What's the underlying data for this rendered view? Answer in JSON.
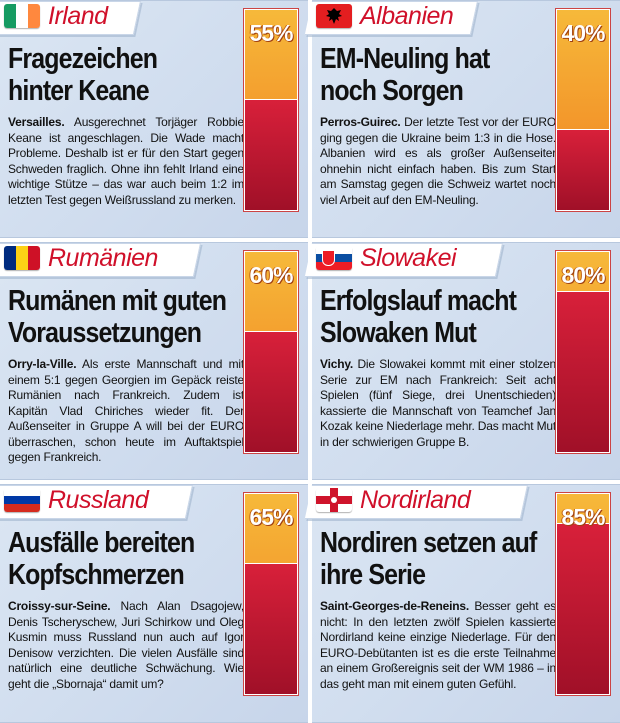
{
  "cards": [
    {
      "country": "Irland",
      "percent_label": "55%",
      "percent": 55,
      "headline": "Fragezeichen hinter Keane",
      "dateline": "Versailles.",
      "text": "Ausgerechnet Torjäger Robbie Keane ist angeschlagen. Die Wade macht Probleme. Deshalb ist er für den Start gegen Schweden fraglich. Ohne ihn fehlt Irland eine wichtige Stütze – das war auch beim 1:2 im letzten Test gegen Weißrussland zu merken.",
      "flag": {
        "type": "vertical",
        "colors": [
          "#169b62",
          "#ffffff",
          "#ff883e"
        ]
      }
    },
    {
      "country": "Albanien",
      "percent_label": "40%",
      "percent": 40,
      "headline": "EM-Neuling hat noch Sorgen",
      "dateline": "Perros-Guirec.",
      "text": "Der letzte Test vor der EURO ging gegen die Ukraine beim 1:3 in die Hose. Albanien wird es als großer Außenseiter ohnehin nicht einfach haben. Bis zum Start am Samstag gegen die Schweiz wartet noch viel Arbeit auf den EM-Neuling.",
      "flag": {
        "type": "albania",
        "colors": [
          "#e41e20",
          "#000000"
        ]
      }
    },
    {
      "country": "Rumänien",
      "percent_label": "60%",
      "percent": 60,
      "headline": "Rumänen mit guten Voraussetzungen",
      "dateline": "Orry-la-Ville.",
      "text": "Als erste Mannschaft und mit einem 5:1 gegen Georgien im Gepäck reiste Rumänien nach Frankreich. Zudem ist Kapitän Vlad Chiriches wieder fit. Der Außenseiter in Gruppe A will bei der EURO überraschen, schon heute im Auftaktspiel gegen Frankreich.",
      "flag": {
        "type": "vertical",
        "colors": [
          "#002b7f",
          "#fcd116",
          "#ce1126"
        ]
      }
    },
    {
      "country": "Slowakei",
      "percent_label": "80%",
      "percent": 80,
      "headline": "Erfolgslauf macht Slowaken Mut",
      "dateline": "Vichy.",
      "text": "Die Slowakei kommt mit einer stolzen Serie zur EM nach Frankreich: Seit acht Spielen (fünf Siege, drei Unentschieden) kassierte die Mannschaft von Teamchef Jan Kozak keine Niederlage mehr. Das macht Mut in der schwierigen Gruppe B.",
      "flag": {
        "type": "horizontal",
        "colors": [
          "#ffffff",
          "#0b4ea2",
          "#ee1c25"
        ]
      }
    },
    {
      "country": "Russland",
      "percent_label": "65%",
      "percent": 65,
      "headline": "Ausfälle bereiten Kopfschmerzen",
      "dateline": "Croissy-sur-Seine.",
      "text": "Nach Alan Dsagojew, Denis Tscheryschew, Juri Schirkow und Oleg Kusmin muss Russland nun auch auf Igor Denisow verzichten. Die vielen Ausfälle sind natürlich eine deutliche Schwächung. Wie geht die „Sbornaja“ damit um?",
      "flag": {
        "type": "horizontal",
        "colors": [
          "#ffffff",
          "#0039a6",
          "#d52b1e"
        ]
      }
    },
    {
      "country": "Nordirland",
      "percent_label": "85%",
      "percent": 85,
      "headline": "Nordiren setzen auf ihre Serie",
      "dateline": "Saint-Georges-de-Reneins.",
      "text": "Besser geht es nicht: In den letzten zwölf Spielen kassierte Nordirland keine einzige Niederlage. Für den EURO-Debütanten ist es die erste Teilnahme an einem Großereignis seit der WM 1986 – in das geht man mit einem guten Gefühl.",
      "flag": {
        "type": "ulster",
        "colors": [
          "#ffffff",
          "#cf142b"
        ]
      }
    }
  ]
}
